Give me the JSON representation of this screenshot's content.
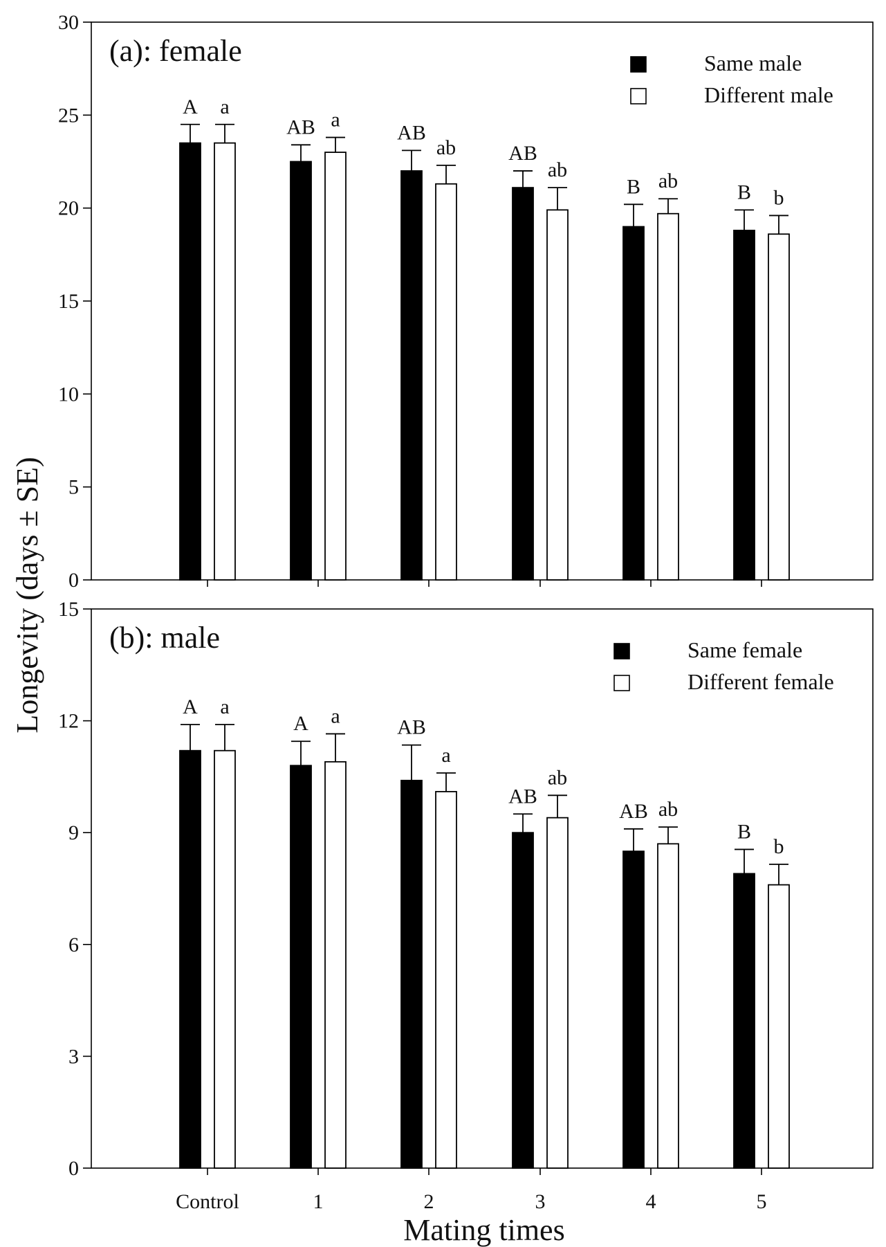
{
  "figure": {
    "ylabel": "Longevity (days ±  SE)",
    "xlabel": "Mating times"
  },
  "chart_data": [
    {
      "type": "bar",
      "title": "(a): female",
      "xlabel": "Mating times",
      "ylabel": "Longevity (days ±  SE)",
      "ylim": [
        0,
        30
      ],
      "yticks": [
        0,
        5,
        10,
        15,
        20,
        25,
        30
      ],
      "categories": [
        "Control",
        "1",
        "2",
        "3",
        "4",
        "5"
      ],
      "series": [
        {
          "name": "Same male",
          "color": "#000000",
          "values": [
            23.5,
            22.5,
            22.0,
            21.1,
            19.0,
            18.8
          ],
          "errors": [
            1.0,
            0.9,
            1.1,
            0.9,
            1.2,
            1.1
          ],
          "letters": [
            "A",
            "AB",
            "AB",
            "AB",
            "B",
            "B"
          ]
        },
        {
          "name": "Different male",
          "color": "#ffffff",
          "values": [
            23.5,
            23.0,
            21.3,
            19.9,
            19.7,
            18.6
          ],
          "errors": [
            1.0,
            0.8,
            1.0,
            1.2,
            0.8,
            1.0
          ],
          "letters": [
            "a",
            "a",
            "ab",
            "ab",
            "ab",
            "b"
          ]
        }
      ],
      "legend_position": "top-right"
    },
    {
      "type": "bar",
      "title": "(b): male",
      "xlabel": "Mating times",
      "ylabel": "Longevity (days ±  SE)",
      "ylim": [
        0,
        15
      ],
      "yticks": [
        0,
        3,
        6,
        9,
        12,
        15
      ],
      "categories": [
        "Control",
        "1",
        "2",
        "3",
        "4",
        "5"
      ],
      "series": [
        {
          "name": "Same female",
          "color": "#000000",
          "values": [
            11.2,
            10.8,
            10.4,
            9.0,
            8.5,
            7.9
          ],
          "errors": [
            0.7,
            0.65,
            0.95,
            0.5,
            0.6,
            0.65
          ],
          "letters": [
            "A",
            "A",
            "AB",
            "AB",
            "AB",
            "B"
          ]
        },
        {
          "name": "Different female",
          "color": "#ffffff",
          "values": [
            11.2,
            10.9,
            10.1,
            9.4,
            8.7,
            7.6
          ],
          "errors": [
            0.7,
            0.75,
            0.5,
            0.6,
            0.45,
            0.55
          ],
          "letters": [
            "a",
            "a",
            "a",
            "ab",
            "ab",
            "b"
          ]
        }
      ],
      "legend_position": "top-right"
    }
  ]
}
